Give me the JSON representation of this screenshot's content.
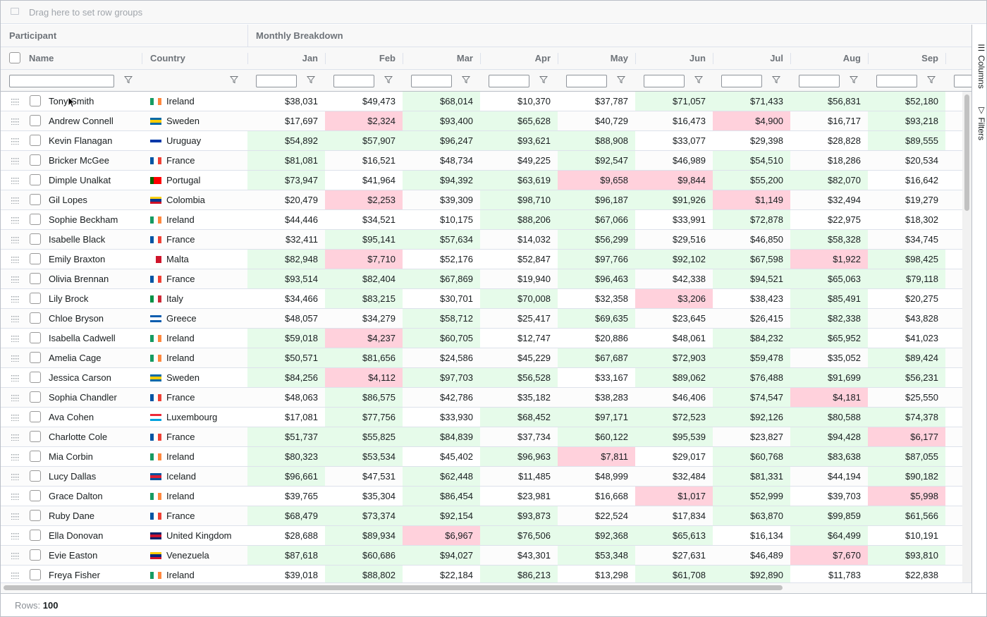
{
  "group_bar": {
    "placeholder": "Drag here to set row groups",
    "icon": "group-icon"
  },
  "header_groups": {
    "participant": "Participant",
    "monthly": "Monthly Breakdown"
  },
  "columns": {
    "name": "Name",
    "country": "Country",
    "months": [
      "Jan",
      "Feb",
      "Mar",
      "Apr",
      "May",
      "Jun",
      "Jul",
      "Aug",
      "Sep"
    ]
  },
  "side_panel": {
    "columns_tab": "Columns",
    "filters_tab": "Filters"
  },
  "status_bar": {
    "rows_label": "Rows:",
    "rows_value": "100"
  },
  "colors": {
    "high": "#e6fbea",
    "low": "#ffd1dc",
    "border": "#babfc7"
  },
  "rows": [
    {
      "name": "Tony Smith",
      "country": "Ireland",
      "values": [
        "$38,031",
        "$49,473",
        "$68,014",
        "$10,370",
        "$37,787",
        "$71,057",
        "$71,433",
        "$56,831",
        "$52,180"
      ],
      "shade": [
        "",
        "",
        "h",
        "",
        "",
        "h",
        "h",
        "h",
        "h"
      ]
    },
    {
      "name": "Andrew Connell",
      "country": "Sweden",
      "values": [
        "$17,697",
        "$2,324",
        "$93,400",
        "$65,628",
        "$40,729",
        "$16,473",
        "$4,900",
        "$16,717",
        "$93,218"
      ],
      "shade": [
        "",
        "l",
        "h",
        "h",
        "",
        "",
        "l",
        "",
        "h"
      ]
    },
    {
      "name": "Kevin Flanagan",
      "country": "Uruguay",
      "values": [
        "$54,892",
        "$57,907",
        "$96,247",
        "$93,621",
        "$88,908",
        "$33,077",
        "$29,398",
        "$28,828",
        "$89,555"
      ],
      "shade": [
        "h",
        "h",
        "h",
        "h",
        "h",
        "",
        "",
        "",
        "h"
      ]
    },
    {
      "name": "Bricker McGee",
      "country": "France",
      "values": [
        "$81,081",
        "$16,521",
        "$48,734",
        "$49,225",
        "$92,547",
        "$46,989",
        "$54,510",
        "$18,286",
        "$20,534"
      ],
      "shade": [
        "h",
        "",
        "",
        "",
        "h",
        "",
        "h",
        "",
        ""
      ]
    },
    {
      "name": "Dimple Unalkat",
      "country": "Portugal",
      "values": [
        "$73,947",
        "$41,964",
        "$94,392",
        "$63,619",
        "$9,658",
        "$9,844",
        "$55,200",
        "$82,070",
        "$16,642"
      ],
      "shade": [
        "h",
        "",
        "h",
        "h",
        "l",
        "l",
        "h",
        "h",
        ""
      ]
    },
    {
      "name": "Gil Lopes",
      "country": "Colombia",
      "values": [
        "$20,479",
        "$2,253",
        "$39,309",
        "$98,710",
        "$96,187",
        "$91,926",
        "$1,149",
        "$32,494",
        "$19,279"
      ],
      "shade": [
        "",
        "l",
        "",
        "h",
        "h",
        "h",
        "l",
        "",
        ""
      ]
    },
    {
      "name": "Sophie Beckham",
      "country": "Ireland",
      "values": [
        "$44,446",
        "$34,521",
        "$10,175",
        "$88,206",
        "$67,066",
        "$33,991",
        "$72,878",
        "$22,975",
        "$18,302"
      ],
      "shade": [
        "",
        "",
        "",
        "h",
        "h",
        "",
        "h",
        "",
        ""
      ]
    },
    {
      "name": "Isabelle Black",
      "country": "France",
      "values": [
        "$32,411",
        "$95,141",
        "$57,634",
        "$14,032",
        "$56,299",
        "$29,516",
        "$46,850",
        "$58,328",
        "$34,745"
      ],
      "shade": [
        "",
        "h",
        "h",
        "",
        "h",
        "",
        "",
        "h",
        ""
      ]
    },
    {
      "name": "Emily Braxton",
      "country": "Malta",
      "values": [
        "$82,948",
        "$7,710",
        "$52,176",
        "$52,847",
        "$97,766",
        "$92,102",
        "$67,598",
        "$1,922",
        "$98,425"
      ],
      "shade": [
        "h",
        "l",
        "",
        "",
        "h",
        "h",
        "h",
        "l",
        "h"
      ]
    },
    {
      "name": "Olivia Brennan",
      "country": "France",
      "values": [
        "$93,514",
        "$82,404",
        "$67,869",
        "$19,940",
        "$96,463",
        "$42,338",
        "$94,521",
        "$65,063",
        "$79,118"
      ],
      "shade": [
        "h",
        "h",
        "h",
        "",
        "h",
        "",
        "h",
        "h",
        "h"
      ]
    },
    {
      "name": "Lily Brock",
      "country": "Italy",
      "values": [
        "$34,466",
        "$83,215",
        "$30,701",
        "$70,008",
        "$32,358",
        "$3,206",
        "$38,423",
        "$85,491",
        "$20,275"
      ],
      "shade": [
        "",
        "h",
        "",
        "h",
        "",
        "l",
        "",
        "h",
        ""
      ]
    },
    {
      "name": "Chloe Bryson",
      "country": "Greece",
      "values": [
        "$48,057",
        "$34,279",
        "$58,712",
        "$25,417",
        "$69,635",
        "$23,645",
        "$26,415",
        "$82,338",
        "$43,828"
      ],
      "shade": [
        "",
        "",
        "h",
        "",
        "h",
        "",
        "",
        "h",
        ""
      ]
    },
    {
      "name": "Isabella Cadwell",
      "country": "Ireland",
      "values": [
        "$59,018",
        "$4,237",
        "$60,705",
        "$12,747",
        "$20,886",
        "$48,061",
        "$84,232",
        "$65,952",
        "$41,023"
      ],
      "shade": [
        "h",
        "l",
        "h",
        "",
        "",
        "",
        "h",
        "h",
        ""
      ]
    },
    {
      "name": "Amelia Cage",
      "country": "Ireland",
      "values": [
        "$50,571",
        "$81,656",
        "$24,586",
        "$45,229",
        "$67,687",
        "$72,903",
        "$59,478",
        "$35,052",
        "$89,424"
      ],
      "shade": [
        "h",
        "h",
        "",
        "",
        "h",
        "h",
        "h",
        "",
        "h"
      ]
    },
    {
      "name": "Jessica Carson",
      "country": "Sweden",
      "values": [
        "$84,256",
        "$4,112",
        "$97,703",
        "$56,528",
        "$33,167",
        "$89,062",
        "$76,488",
        "$91,699",
        "$56,231"
      ],
      "shade": [
        "h",
        "l",
        "h",
        "h",
        "",
        "h",
        "h",
        "h",
        "h"
      ]
    },
    {
      "name": "Sophia Chandler",
      "country": "France",
      "values": [
        "$48,063",
        "$86,575",
        "$42,786",
        "$35,182",
        "$38,283",
        "$46,406",
        "$74,547",
        "$4,181",
        "$25,550"
      ],
      "shade": [
        "",
        "h",
        "",
        "",
        "",
        "",
        "h",
        "l",
        ""
      ]
    },
    {
      "name": "Ava Cohen",
      "country": "Luxembourg",
      "values": [
        "$17,081",
        "$77,756",
        "$33,930",
        "$68,452",
        "$97,171",
        "$72,523",
        "$92,126",
        "$80,588",
        "$74,378"
      ],
      "shade": [
        "",
        "h",
        "",
        "h",
        "h",
        "h",
        "h",
        "h",
        "h"
      ]
    },
    {
      "name": "Charlotte Cole",
      "country": "France",
      "values": [
        "$51,737",
        "$55,825",
        "$84,839",
        "$37,734",
        "$60,122",
        "$95,539",
        "$23,827",
        "$94,428",
        "$6,177"
      ],
      "shade": [
        "h",
        "h",
        "h",
        "",
        "h",
        "h",
        "",
        "h",
        "l"
      ]
    },
    {
      "name": "Mia Corbin",
      "country": "Ireland",
      "values": [
        "$80,323",
        "$53,534",
        "$45,402",
        "$96,963",
        "$7,811",
        "$29,017",
        "$60,768",
        "$83,638",
        "$87,055"
      ],
      "shade": [
        "h",
        "h",
        "",
        "h",
        "l",
        "",
        "h",
        "h",
        "h"
      ]
    },
    {
      "name": "Lucy Dallas",
      "country": "Iceland",
      "values": [
        "$96,661",
        "$47,531",
        "$62,448",
        "$11,485",
        "$48,999",
        "$32,484",
        "$81,331",
        "$44,194",
        "$90,182"
      ],
      "shade": [
        "h",
        "",
        "h",
        "",
        "",
        "",
        "h",
        "",
        "h"
      ]
    },
    {
      "name": "Grace Dalton",
      "country": "Ireland",
      "values": [
        "$39,765",
        "$35,304",
        "$86,454",
        "$23,981",
        "$16,668",
        "$1,017",
        "$52,999",
        "$39,703",
        "$5,998"
      ],
      "shade": [
        "",
        "",
        "h",
        "",
        "",
        "l",
        "h",
        "",
        "l"
      ]
    },
    {
      "name": "Ruby Dane",
      "country": "France",
      "values": [
        "$68,479",
        "$73,374",
        "$92,154",
        "$93,873",
        "$22,524",
        "$17,834",
        "$63,870",
        "$99,859",
        "$61,566"
      ],
      "shade": [
        "h",
        "h",
        "h",
        "h",
        "",
        "",
        "h",
        "h",
        "h"
      ]
    },
    {
      "name": "Ella Donovan",
      "country": "United Kingdom",
      "values": [
        "$28,688",
        "$89,934",
        "$6,967",
        "$76,506",
        "$92,368",
        "$65,613",
        "$16,134",
        "$64,499",
        "$10,191"
      ],
      "shade": [
        "",
        "h",
        "l",
        "h",
        "h",
        "h",
        "",
        "h",
        ""
      ]
    },
    {
      "name": "Evie Easton",
      "country": "Venezuela",
      "values": [
        "$87,618",
        "$60,686",
        "$94,027",
        "$43,301",
        "$53,348",
        "$27,631",
        "$46,489",
        "$7,670",
        "$93,810"
      ],
      "shade": [
        "h",
        "h",
        "h",
        "",
        "h",
        "",
        "",
        "l",
        "h"
      ]
    },
    {
      "name": "Freya Fisher",
      "country": "Ireland",
      "values": [
        "$39,018",
        "$88,802",
        "$22,184",
        "$86,213",
        "$13,298",
        "$61,708",
        "$92,890",
        "$11,783",
        "$22,838"
      ],
      "shade": [
        "",
        "h",
        "",
        "h",
        "",
        "h",
        "h",
        "",
        ""
      ]
    }
  ]
}
